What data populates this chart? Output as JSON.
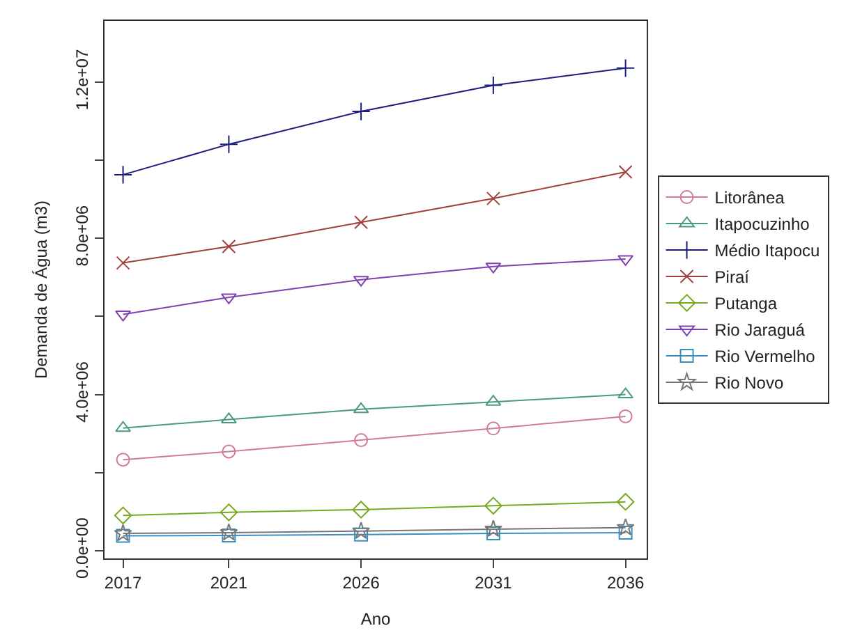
{
  "chart_data": {
    "type": "line",
    "xlabel": "Ano",
    "ylabel": "Demanda de Água (m3)",
    "x": [
      2017,
      2021,
      2026,
      2031,
      2036
    ],
    "xlim": [
      2016.3,
      2036.8
    ],
    "xticks": [
      2017,
      2021,
      2026,
      2031,
      2036
    ],
    "ylim": [
      -200000,
      13570000
    ],
    "yticks": [
      {
        "value": 0,
        "label": "0.0e+00"
      },
      {
        "value": 2000000,
        "label": null
      },
      {
        "value": 4000000,
        "label": "4.0e+06"
      },
      {
        "value": 6000000,
        "label": null
      },
      {
        "value": 8000000,
        "label": "8.0e+06"
      },
      {
        "value": 10000000,
        "label": null
      },
      {
        "value": 12000000,
        "label": "1.2e+07"
      }
    ],
    "legend": "right",
    "line_style": "solid",
    "series": [
      {
        "name": "Litorânea",
        "color": "#d17a9e",
        "marker": "circle",
        "values": [
          2330000,
          2540000,
          2830000,
          3130000,
          3440000
        ]
      },
      {
        "name": "Itapocuzinho",
        "color": "#4a9a80",
        "marker": "triangle",
        "values": [
          3140000,
          3360000,
          3620000,
          3810000,
          4000000
        ]
      },
      {
        "name": "Médio Itapocu",
        "color": "#1c1c80",
        "marker": "cross",
        "values": [
          9630000,
          10410000,
          11250000,
          11920000,
          12360000
        ]
      },
      {
        "name": "Piraí",
        "color": "#a0403a",
        "marker": "x",
        "values": [
          7370000,
          7790000,
          8410000,
          9020000,
          9700000
        ]
      },
      {
        "name": "Putanga",
        "color": "#77aa22",
        "marker": "diamond",
        "values": [
          900000,
          980000,
          1050000,
          1150000,
          1250000
        ]
      },
      {
        "name": "Rio Jaraguá",
        "color": "#8040b0",
        "marker": "triangle-down",
        "values": [
          6050000,
          6490000,
          6940000,
          7280000,
          7470000
        ]
      },
      {
        "name": "Rio Vermelho",
        "color": "#3a8fc0",
        "marker": "square",
        "values": [
          380000,
          390000,
          410000,
          440000,
          460000
        ]
      },
      {
        "name": "Rio Novo",
        "color": "#777777",
        "marker": "star",
        "values": [
          440000,
          460000,
          500000,
          550000,
          590000
        ]
      }
    ]
  }
}
